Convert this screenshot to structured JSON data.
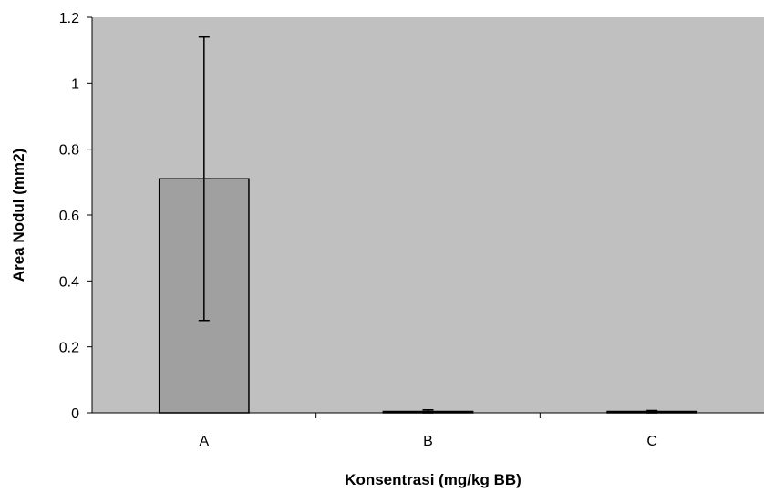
{
  "chart_data": {
    "type": "bar",
    "categories": [
      "A",
      "B",
      "C"
    ],
    "values": [
      0.71,
      0.004,
      0.004
    ],
    "error_bars": [
      {
        "low": 0.28,
        "high": 1.14
      },
      {
        "low": 0.0,
        "high": 0.009
      },
      {
        "low": 0.0,
        "high": 0.007
      }
    ],
    "xlabel": "Konsentrasi (mg/kg BB)",
    "ylabel": "Area Nodul (mm2)",
    "ylim": [
      0,
      1.2
    ],
    "yticks": [
      "0",
      "0.2",
      "0.4",
      "0.6",
      "0.8",
      "1",
      "1.2"
    ],
    "grid": false,
    "legend": "none",
    "colors": {
      "plot_background": "#c0c0c0",
      "bar_fill": "#a0a0a0",
      "bar_stroke": "#000000",
      "axis": "#000000"
    }
  }
}
